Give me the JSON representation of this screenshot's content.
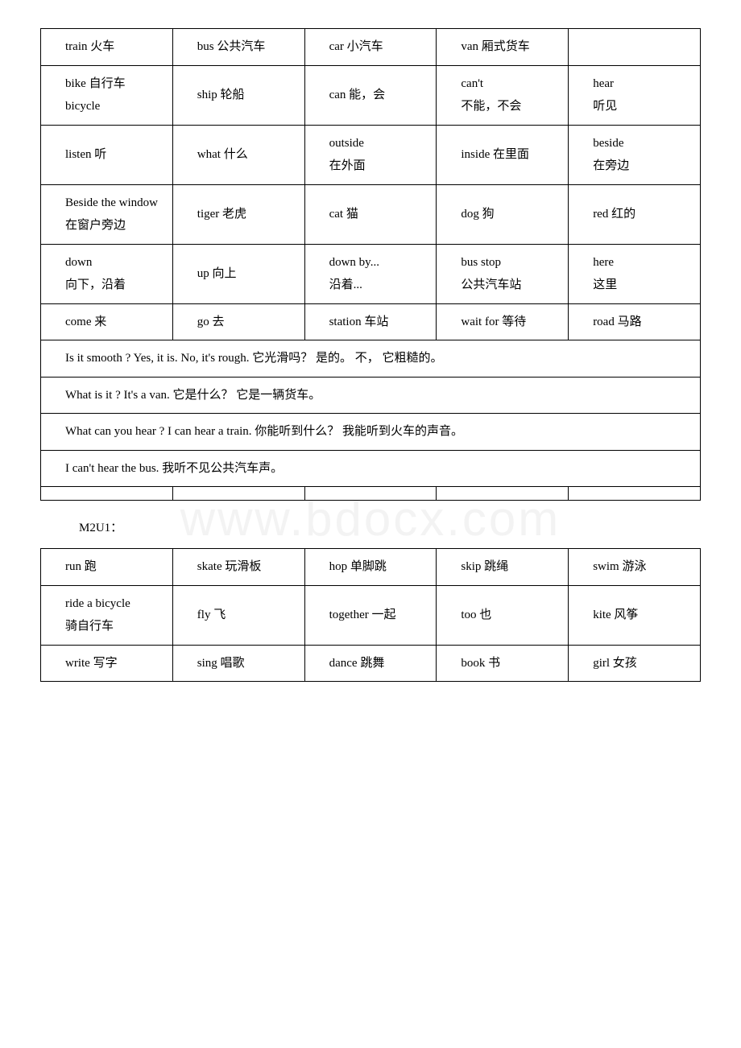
{
  "watermark": "www.bdocx.com",
  "table1": {
    "rows": [
      [
        "train 火车",
        "bus 公共汽车",
        "car 小汽车",
        "van 厢式货车",
        ""
      ],
      [
        "bike 自行车\nbicycle",
        "ship 轮船",
        "can 能，会",
        "can't\n不能，不会",
        "hear\n听见"
      ],
      [
        "listen 听",
        "what 什么",
        "outside\n在外面",
        "inside 在里面",
        "beside\n在旁边"
      ],
      [
        "Beside the window\n在窗户旁边",
        "tiger 老虎",
        "cat 猫",
        "dog 狗",
        "red 红的"
      ],
      [
        "down\n向下，沿着",
        "up 向上",
        "down by...\n沿着...",
        "bus stop\n公共汽车站",
        "here\n这里"
      ],
      [
        "come 来",
        "go 去",
        "station 车站",
        "wait for 等待",
        "road 马路"
      ]
    ],
    "sentences": [
      "Is it smooth ? Yes, it is. No, it's rough. 它光滑吗？ 是的。 不， 它粗糙的。",
      "What is it ? It's a van. 它是什么？ 它是一辆货车。",
      "What can you hear ? I can hear a train. 你能听到什么？ 我能听到火车的声音。",
      "I can't hear the bus. 我听不见公共汽车声。"
    ]
  },
  "section_label": "M2U1：",
  "table2": {
    "rows": [
      [
        "run 跑",
        "skate 玩滑板",
        "hop 单脚跳",
        "skip 跳绳",
        "swim 游泳"
      ],
      [
        "ride a bicycle\n骑自行车",
        "fly 飞",
        "together 一起",
        "too 也",
        "kite 风筝"
      ],
      [
        "write 写字",
        "sing 唱歌",
        "dance 跳舞",
        "book 书",
        "girl 女孩"
      ]
    ]
  }
}
